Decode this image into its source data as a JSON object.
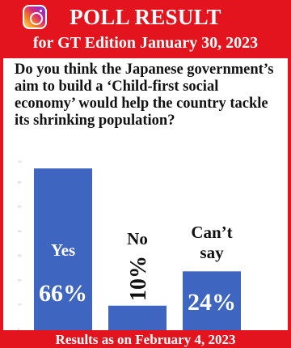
{
  "poll": {
    "title": "POLL RESULT",
    "subtitle": "for GT Edition January 30, 2023",
    "question": "Do you think the Japanese government’s aim to build a ‘Child-first social economy’ would help the country tackle its shrinking population?",
    "footer": "Results as on February 4, 2023",
    "icon": "instagram-icon"
  },
  "colors": {
    "accent": "#e4141e",
    "bar": "#3e66c0"
  },
  "chart_data": {
    "type": "bar",
    "categories": [
      "Yes",
      "No",
      "Can’t say"
    ],
    "values": [
      66,
      10,
      24
    ],
    "value_labels": [
      "66%",
      "10%",
      "24%"
    ],
    "ylim": [
      0,
      70
    ],
    "yticks": [
      "0",
      "10",
      "20",
      "30",
      "40",
      "50",
      "60",
      "70"
    ],
    "grid": false
  }
}
